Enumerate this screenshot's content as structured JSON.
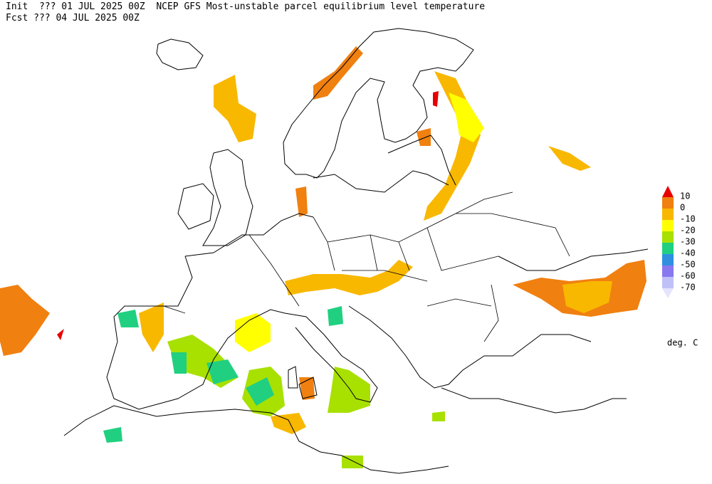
{
  "header": {
    "line1": "Init  ??? 01 JUL 2025 00Z  NCEP GFS Most-unstable parcel equilibrium level temperature",
    "line2": "Fcst ??? 04 JUL 2025 00Z"
  },
  "legend": {
    "ticks": [
      10,
      0,
      -10,
      -20,
      -30,
      -40,
      -50,
      -60,
      -70
    ],
    "colors": [
      "#e80000",
      "#f08010",
      "#f8b800",
      "#ffff00",
      "#a8e000",
      "#20d080",
      "#3090e0",
      "#8878f0",
      "#c0c0f8",
      "#e4e4ff"
    ],
    "unit": "deg. C"
  }
}
